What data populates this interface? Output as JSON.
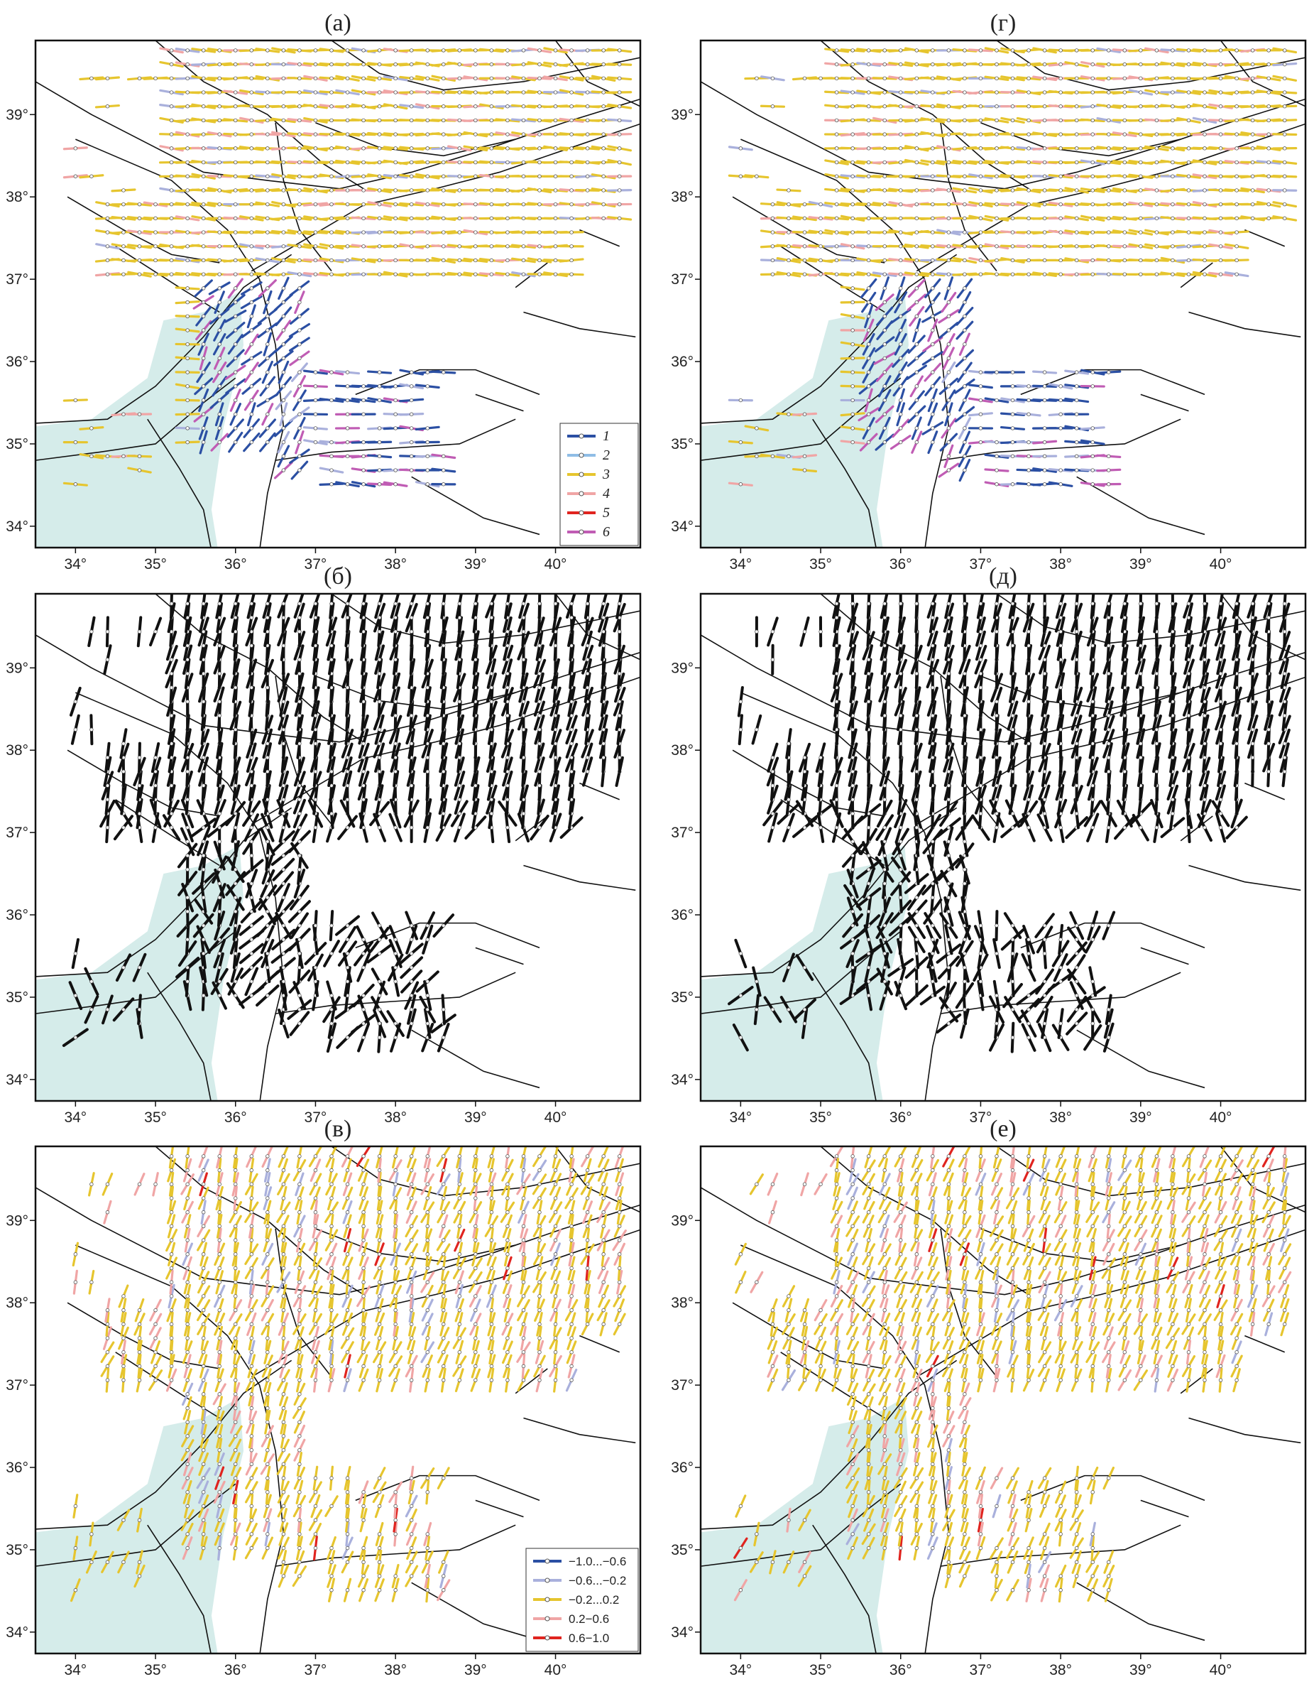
{
  "panels": [
    {
      "label": "(а)",
      "style": "a",
      "legend": {
        "italic": true,
        "items": [
          {
            "label": "1",
            "color": "#2b4fa3"
          },
          {
            "label": "2",
            "color": "#8fbde6"
          },
          {
            "label": "3",
            "color": "#e6c52e"
          },
          {
            "label": "4",
            "color": "#f0a5a5"
          },
          {
            "label": "5",
            "color": "#e0241f"
          },
          {
            "label": "6",
            "color": "#c05cb4"
          }
        ]
      }
    },
    {
      "label": "(г)",
      "style": "a"
    },
    {
      "label": "(б)",
      "style": "b"
    },
    {
      "label": "(д)",
      "style": "b"
    },
    {
      "label": "(в)",
      "style": "c",
      "legend": {
        "italic": false,
        "items": [
          {
            "label": "−1.0...−0.6",
            "color": "#2b4fa3"
          },
          {
            "label": "−0.6...−0.2",
            "color": "#a9b0dc"
          },
          {
            "label": "−0.2...0.2",
            "color": "#e6c52e"
          },
          {
            "label": "0.2−0.6",
            "color": "#f0a5a5"
          },
          {
            "label": "0.6−1.0",
            "color": "#e0241f"
          }
        ]
      }
    },
    {
      "label": "(е)",
      "style": "c"
    }
  ],
  "xlim": [
    33.5,
    41.06
  ],
  "ylim": [
    33.74,
    39.9
  ],
  "xticks": [
    {
      "value": 34,
      "label": "34°"
    },
    {
      "value": 35,
      "label": "35°"
    },
    {
      "value": 36,
      "label": "36°"
    },
    {
      "value": 37,
      "label": "37°"
    },
    {
      "value": 38,
      "label": "38°"
    },
    {
      "value": 39,
      "label": "39°"
    },
    {
      "value": 40,
      "label": "40°"
    }
  ],
  "yticks": [
    {
      "value": 34,
      "label": "34°"
    },
    {
      "value": 35,
      "label": "35°"
    },
    {
      "value": 36,
      "label": "36°"
    },
    {
      "value": 37,
      "label": "37°"
    },
    {
      "value": 38,
      "label": "38°"
    },
    {
      "value": 39,
      "label": "39°"
    }
  ]
}
